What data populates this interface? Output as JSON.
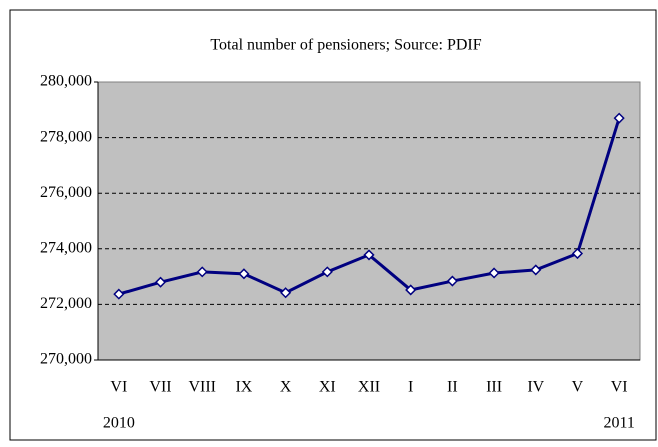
{
  "chart_data": {
    "type": "line",
    "title": "Total number of pensioners; Source: PDIF",
    "categories": [
      "VI",
      "VII",
      "VIII",
      "IX",
      "X",
      "XI",
      "XII",
      "I",
      "II",
      "III",
      "IV",
      "V",
      "VI"
    ],
    "category_years": [
      "2010",
      null,
      null,
      null,
      null,
      null,
      null,
      null,
      null,
      null,
      null,
      null,
      "2011"
    ],
    "series": [
      {
        "name": "Total number of pensioners",
        "color": "#000080",
        "values": [
          272370,
          272800,
          273170,
          273100,
          272420,
          273170,
          273780,
          272520,
          272840,
          273130,
          273240,
          273830,
          278700
        ]
      }
    ],
    "ylim": [
      270000,
      280000
    ],
    "yticks": [
      {
        "value": 270000,
        "label": "270,000"
      },
      {
        "value": 272000,
        "label": "272,000"
      },
      {
        "value": 274000,
        "label": "274,000"
      },
      {
        "value": 276000,
        "label": "276,000"
      },
      {
        "value": 278000,
        "label": "278,000"
      },
      {
        "value": 280000,
        "label": "280,000"
      }
    ],
    "grid": true,
    "plot_background": "#c0c0c0"
  }
}
